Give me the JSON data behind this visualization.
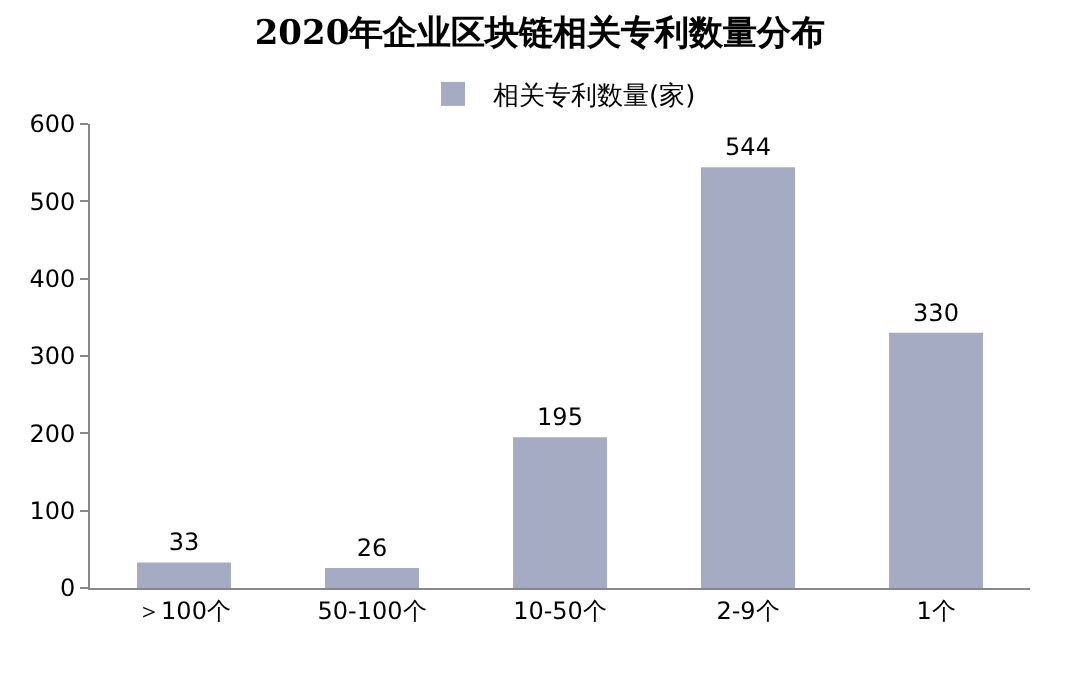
{
  "chart_data": {
    "type": "bar",
    "title": "2020年企业区块链相关专利数量分布",
    "categories": [
      "＞100个",
      "50-100个",
      "10-50个",
      "2-9个",
      "1个"
    ],
    "series": [
      {
        "name": "相关专利数量(家)",
        "color": "#a6abc4",
        "values": [
          33,
          26,
          195,
          544,
          330
        ]
      }
    ],
    "ylim": [
      0,
      600
    ],
    "yticks": [
      0,
      100,
      200,
      300,
      400,
      500,
      600
    ],
    "grid": false,
    "legend": "top",
    "data_labels": true
  }
}
